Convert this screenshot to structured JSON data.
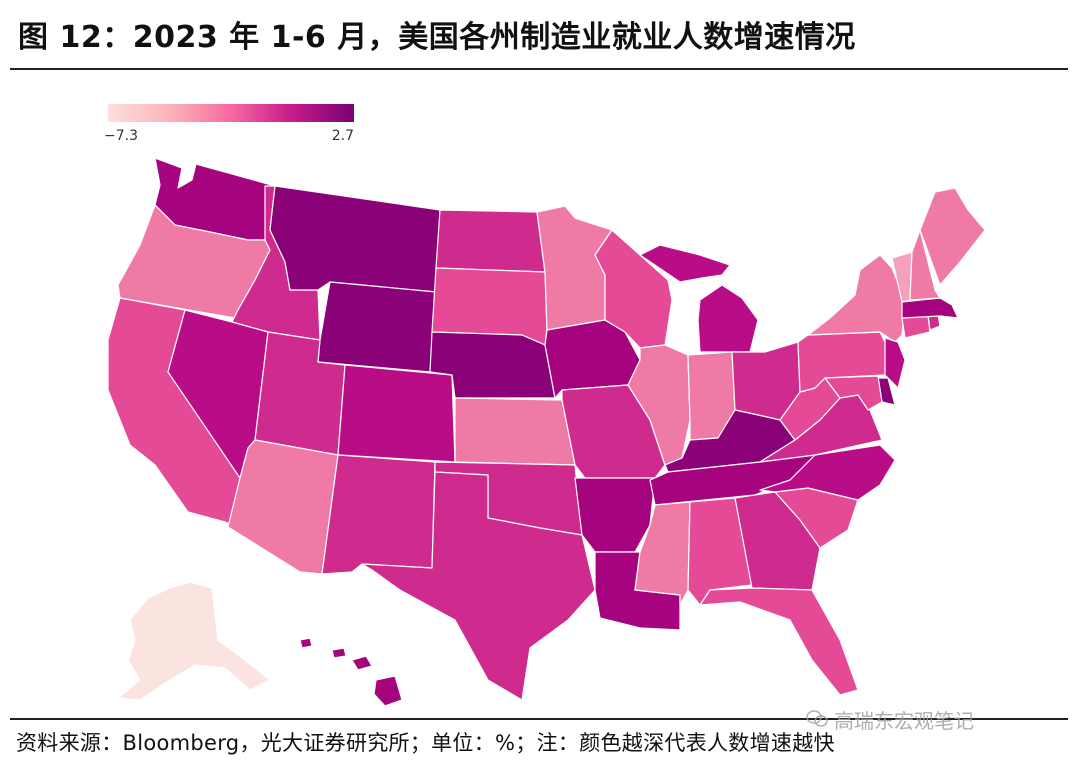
{
  "title": "图 12：2023 年 1-6 月，美国各州制造业就业人数增速情况",
  "legend": {
    "min": "−7.3",
    "max": "2.7"
  },
  "source": "资料来源：Bloomberg，光大证券研究所；单位：%；注：颜色越深代表人数增速越快",
  "watermark": "高瑞东宏观笔记",
  "colors": {
    "darkest": "#8b0177",
    "dark": "#a6047e",
    "mid_dark": "#b80d86",
    "mid": "#cf2a8e",
    "mid_light": "#e54a97",
    "light": "#f07aa6",
    "lightest": "#fbe3df"
  },
  "states": [
    {
      "name": "Washington",
      "fill": "#a6047e"
    },
    {
      "name": "Oregon",
      "fill": "#f07aa6"
    },
    {
      "name": "California",
      "fill": "#e54a97"
    },
    {
      "name": "Idaho",
      "fill": "#cf2a8e"
    },
    {
      "name": "Nevada",
      "fill": "#b80d86"
    },
    {
      "name": "Montana",
      "fill": "#8b0177"
    },
    {
      "name": "Wyoming",
      "fill": "#8b0177"
    },
    {
      "name": "Utah",
      "fill": "#cf2a8e"
    },
    {
      "name": "Arizona",
      "fill": "#f07aa6"
    },
    {
      "name": "Colorado",
      "fill": "#b80d86"
    },
    {
      "name": "New Mexico",
      "fill": "#cf2a8e"
    },
    {
      "name": "North Dakota",
      "fill": "#cf2a8e"
    },
    {
      "name": "South Dakota",
      "fill": "#e54a97"
    },
    {
      "name": "Nebraska",
      "fill": "#8b0177"
    },
    {
      "name": "Kansas",
      "fill": "#f07aa6"
    },
    {
      "name": "Oklahoma",
      "fill": "#cf2a8e"
    },
    {
      "name": "Texas",
      "fill": "#cf2a8e"
    },
    {
      "name": "Minnesota",
      "fill": "#f07aa6"
    },
    {
      "name": "Iowa",
      "fill": "#a6047e"
    },
    {
      "name": "Missouri",
      "fill": "#cf2a8e"
    },
    {
      "name": "Arkansas",
      "fill": "#a6047e"
    },
    {
      "name": "Louisiana",
      "fill": "#a6047e"
    },
    {
      "name": "Wisconsin",
      "fill": "#e54a97"
    },
    {
      "name": "Illinois",
      "fill": "#f07aa6"
    },
    {
      "name": "Michigan",
      "fill": "#b80d86"
    },
    {
      "name": "Indiana",
      "fill": "#f07aa6"
    },
    {
      "name": "Ohio",
      "fill": "#cf2a8e"
    },
    {
      "name": "Kentucky",
      "fill": "#8b0177"
    },
    {
      "name": "Tennessee",
      "fill": "#a6047e"
    },
    {
      "name": "Mississippi",
      "fill": "#f07aa6"
    },
    {
      "name": "Alabama",
      "fill": "#e54a97"
    },
    {
      "name": "Georgia",
      "fill": "#cf2a8e"
    },
    {
      "name": "Florida",
      "fill": "#e54a97"
    },
    {
      "name": "South Carolina",
      "fill": "#e54a97"
    },
    {
      "name": "North Carolina",
      "fill": "#b80d86"
    },
    {
      "name": "Virginia",
      "fill": "#cf2a8e"
    },
    {
      "name": "West Virginia",
      "fill": "#e54a97"
    },
    {
      "name": "Pennsylvania",
      "fill": "#e54a97"
    },
    {
      "name": "New York",
      "fill": "#f07aa6"
    },
    {
      "name": "New Jersey",
      "fill": "#b80d86"
    },
    {
      "name": "Delaware",
      "fill": "#8b0177"
    },
    {
      "name": "Maryland",
      "fill": "#e54a97"
    },
    {
      "name": "Connecticut",
      "fill": "#e54a97"
    },
    {
      "name": "Rhode Island",
      "fill": "#cf2a8e"
    },
    {
      "name": "Massachusetts",
      "fill": "#a6047e"
    },
    {
      "name": "Vermont",
      "fill": "#f7a0bb"
    },
    {
      "name": "New Hampshire",
      "fill": "#f07aa6"
    },
    {
      "name": "Maine",
      "fill": "#f07aa6"
    },
    {
      "name": "Alaska",
      "fill": "#fbe3df"
    },
    {
      "name": "Hawaii",
      "fill": "#a6047e"
    }
  ]
}
